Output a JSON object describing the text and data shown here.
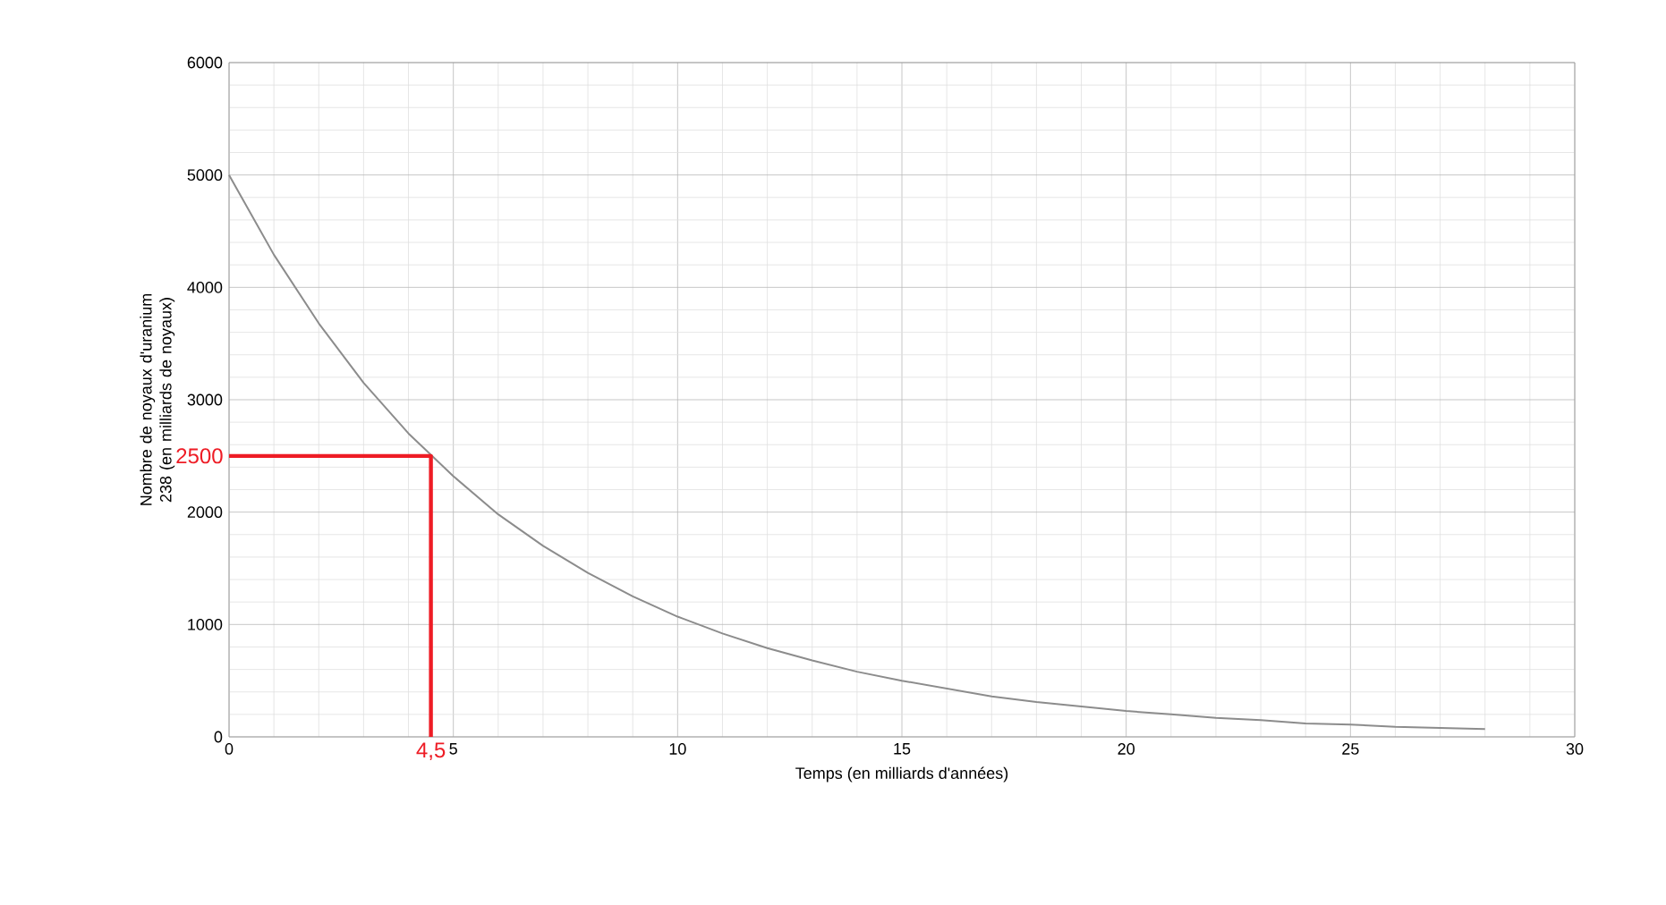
{
  "chart_data": {
    "type": "line",
    "xlabel": "Temps (en milliards d'années)",
    "ylabel": "Nombre de noyaux d'uranium  238 (en milliards de noyaux)",
    "xlim": [
      0,
      30
    ],
    "ylim": [
      0,
      6000
    ],
    "xticks": [
      0,
      5,
      10,
      15,
      20,
      25,
      30
    ],
    "yticks": [
      0,
      1000,
      2000,
      3000,
      4000,
      5000,
      6000
    ],
    "grid": true,
    "series": [
      {
        "color": "#8c8c8c",
        "x": [
          0,
          1,
          2,
          3,
          4,
          5,
          6,
          7,
          8,
          9,
          10,
          11,
          12,
          13,
          14,
          15,
          16,
          17,
          18,
          19,
          20,
          21,
          22,
          23,
          24,
          25,
          26,
          27,
          28
        ],
        "values": [
          5000,
          4290,
          3680,
          3150,
          2700,
          2320,
          1980,
          1700,
          1460,
          1250,
          1070,
          920,
          790,
          680,
          580,
          500,
          430,
          360,
          310,
          270,
          230,
          200,
          170,
          150,
          120,
          110,
          90,
          80,
          70
        ]
      },
      {
        "color": "#ee1c25",
        "x": [
          0,
          4.5,
          4.5
        ],
        "values": [
          2500,
          2500,
          0
        ]
      }
    ],
    "annotations": [
      {
        "text": "2500",
        "x": 0,
        "y": 2500
      },
      {
        "text": "4,5",
        "x": 4.5,
        "y": 0
      }
    ]
  }
}
